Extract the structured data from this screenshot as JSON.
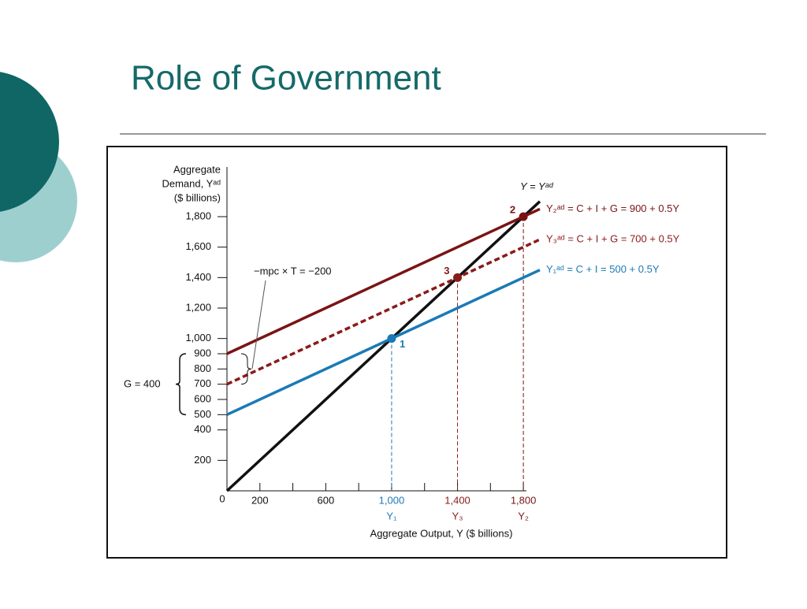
{
  "slide": {
    "title": "Role of Government"
  },
  "chart_data": {
    "type": "line",
    "ylabel": [
      "Aggregate",
      "Demand, Yᵃᵈ",
      "($ billions)"
    ],
    "xlabel": "Aggregate Output, Y  ($ billions)",
    "xlim": [
      0,
      1900
    ],
    "ylim": [
      0,
      2100
    ],
    "xticks": [
      200,
      600,
      {
        "value": 1000,
        "label": "1,000"
      },
      {
        "value": 1400,
        "label": "1,400"
      },
      {
        "value": 1800,
        "label": "1,800"
      }
    ],
    "minor_xticks": [
      400,
      800,
      1200,
      1600
    ],
    "yticks": [
      200,
      400,
      500,
      600,
      700,
      800,
      900,
      {
        "value": 1000,
        "label": "1,000"
      },
      {
        "value": 1200,
        "label": "1,200"
      },
      {
        "value": 1400,
        "label": "1,400"
      },
      {
        "value": 1600,
        "label": "1,600"
      },
      {
        "value": 1800,
        "label": "1,800"
      }
    ],
    "origin_label": "0",
    "series": [
      {
        "name": "Y = Yᵃᵈ",
        "color": "#111111",
        "dashed": false,
        "x": [
          0,
          1900
        ],
        "values": [
          0,
          1900
        ]
      },
      {
        "name": "Y₂ᵃᵈ = C + I + G = 900 + 0.5Y",
        "color": "#7a1414",
        "dashed": false,
        "x": [
          0,
          1900
        ],
        "values": [
          900,
          1850
        ]
      },
      {
        "name": "Y₃ᵃᵈ = C + I + G = 700 + 0.5Y",
        "color": "#8b1a1a",
        "dashed": true,
        "x": [
          0,
          1900
        ],
        "values": [
          700,
          1650
        ]
      },
      {
        "name": "Y₁ᵃᵈ = C + I = 500 + 0.5Y",
        "color": "#1a7ab5",
        "dashed": false,
        "x": [
          0,
          1900
        ],
        "values": [
          500,
          1450
        ]
      }
    ],
    "points": [
      {
        "label": "1",
        "axis_label": "Y₁",
        "x": 1000,
        "y": 1000,
        "color": "#1a7ab5"
      },
      {
        "label": "3",
        "axis_label": "Y₃",
        "x": 1400,
        "y": 1400,
        "color": "#8b1a1a"
      },
      {
        "label": "2",
        "axis_label": "Y₂",
        "x": 1800,
        "y": 1800,
        "color": "#7a1414"
      }
    ],
    "annotations": [
      "−mpc × T = −200",
      "G = 400"
    ]
  }
}
